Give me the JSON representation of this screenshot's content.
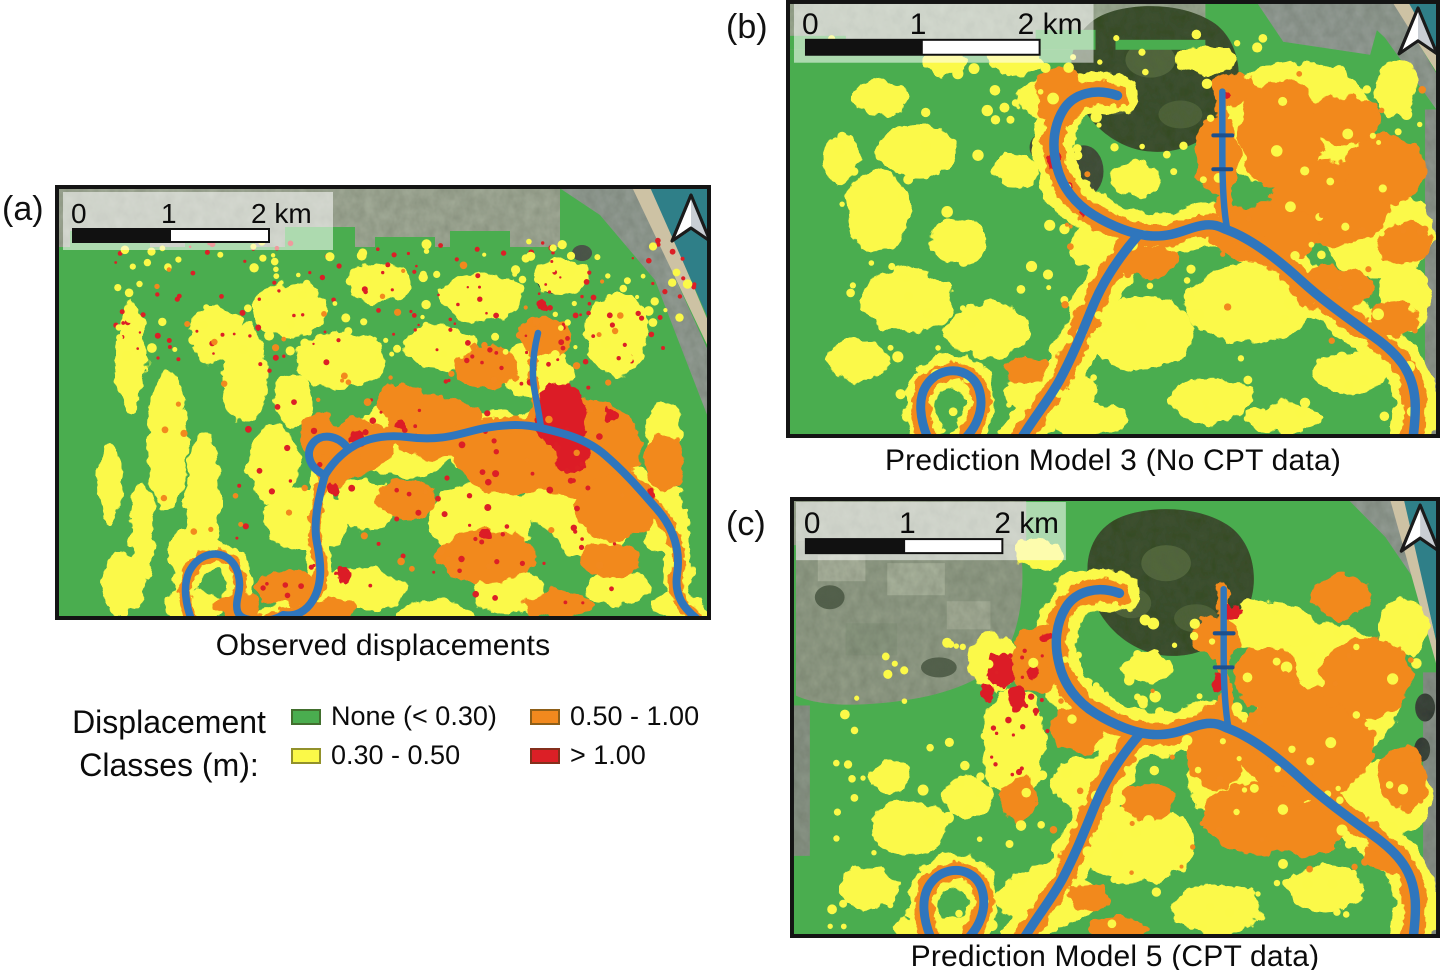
{
  "panels": {
    "a": {
      "label": "(a)",
      "caption": "Observed displacements"
    },
    "b": {
      "label": "(b)",
      "caption": "Prediction Model 3 (No CPT data)"
    },
    "c": {
      "label": "(c)",
      "caption": "Prediction Model 5 (CPT data)"
    }
  },
  "scalebar": {
    "tick0": "0",
    "tick1": "1",
    "tick2": "2 km"
  },
  "legend": {
    "title_line1": "Displacement",
    "title_line2": "Classes (m):",
    "items": [
      {
        "label": "None (< 0.30)",
        "color": "#4aad4f"
      },
      {
        "label": "0.30 - 0.50",
        "color": "#fbf948"
      },
      {
        "label": "0.50 - 1.00",
        "color": "#f2891e"
      },
      {
        "label": "> 1.00",
        "color": "#dc1f26"
      }
    ]
  },
  "map_colors": {
    "none_green": "#4aad4f",
    "low_yellow": "#fbf948",
    "mid_orange": "#f2891e",
    "high_red": "#dc1f26",
    "river_blue": "#2f76bd",
    "ocean_teal": "#2f7f88",
    "beach_tan": "#cdc2a4",
    "urban_gray": "#9aa39a",
    "forest_dark": "#31491f"
  }
}
